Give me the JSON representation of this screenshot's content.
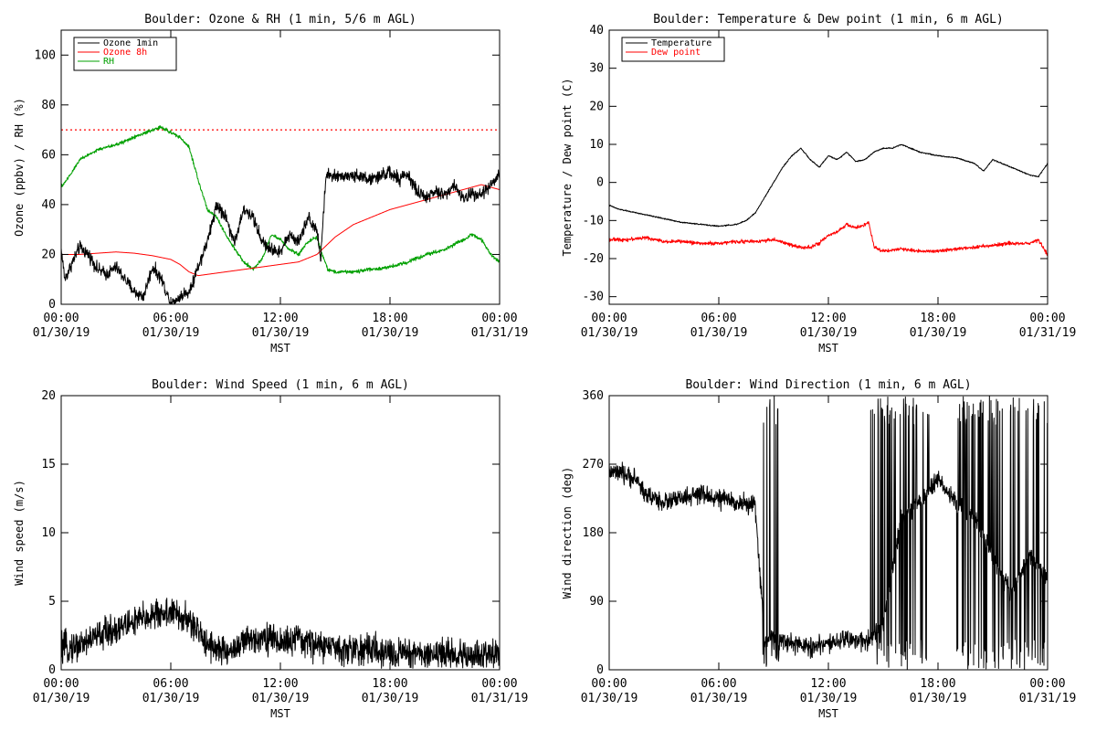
{
  "colors": {
    "black": "#000000",
    "red": "#ff0000",
    "green": "#00a000",
    "ref_line": "#ff0000"
  },
  "chart_data": [
    {
      "id": "ozone",
      "type": "line",
      "title": "Boulder: Ozone & RH (1 min, 5/6 m AGL)",
      "xlabel": "MST",
      "ylabel": "Ozone (ppbv) / RH (%)",
      "xlim": [
        0,
        24
      ],
      "ylim": [
        0,
        110
      ],
      "yticks": [
        "0",
        "20",
        "40",
        "60",
        "80",
        "100"
      ],
      "ytick_values": [
        0,
        20,
        40,
        60,
        80,
        100
      ],
      "xtick_values": [
        0,
        6,
        12,
        18,
        24
      ],
      "xtick_labels": [
        [
          "00:00",
          "01/30/19"
        ],
        [
          "06:00",
          "01/30/19"
        ],
        [
          "12:00",
          "01/30/19"
        ],
        [
          "18:00",
          "01/30/19"
        ],
        [
          "00:00",
          "01/31/19"
        ]
      ],
      "reference_line": {
        "y": 70,
        "style": "dotted",
        "color": "#ff0000"
      },
      "legend": {
        "placement": "top-left"
      },
      "series": [
        {
          "name": "Ozone 1min",
          "color": "#000000",
          "noise": 2.5,
          "x": [
            0,
            0.2,
            0.5,
            1,
            1.5,
            2,
            2.5,
            3,
            3.5,
            4,
            4.5,
            5,
            5.5,
            6,
            6.5,
            7,
            7.5,
            8,
            8.5,
            9,
            9.5,
            10,
            10.5,
            11,
            11.5,
            12,
            12.5,
            13,
            13.5,
            14,
            14.2,
            14.5,
            15,
            16,
            17,
            18,
            18.5,
            19,
            19.5,
            20,
            20.5,
            21,
            21.5,
            22,
            22.5,
            23,
            23.5,
            24
          ],
          "y": [
            22,
            10,
            15,
            23,
            20,
            14,
            12,
            15,
            10,
            5,
            3,
            15,
            10,
            0,
            3,
            5,
            15,
            25,
            40,
            35,
            25,
            38,
            35,
            25,
            22,
            21,
            28,
            25,
            35,
            30,
            18,
            52,
            51,
            52,
            50,
            53,
            50,
            52,
            45,
            43,
            45,
            44,
            48,
            42,
            45,
            44,
            48,
            52
          ]
        },
        {
          "name": "Ozone 8h",
          "color": "#ff0000",
          "noise": 0,
          "x": [
            0,
            1,
            2,
            3,
            4,
            5,
            6,
            6.5,
            7,
            7.5,
            8,
            9,
            10,
            11,
            12,
            13,
            14,
            15,
            16,
            17,
            18,
            19,
            20,
            21,
            22,
            23,
            24
          ],
          "y": [
            20,
            20,
            20.5,
            21,
            20.5,
            19.5,
            18,
            16,
            13,
            11.5,
            12,
            13,
            14,
            15,
            16,
            17,
            20,
            27,
            32,
            35,
            38,
            40,
            42,
            44,
            46,
            48,
            46
          ]
        },
        {
          "name": "RH",
          "color": "#00a000",
          "noise": 0.7,
          "x": [
            0,
            0.5,
            1,
            1.5,
            2,
            3,
            4,
            5,
            5.5,
            6,
            6.5,
            7,
            7.5,
            8,
            8.5,
            9,
            9.5,
            10,
            10.5,
            11,
            11.5,
            12,
            12.5,
            13,
            13.5,
            14,
            14.3,
            14.6,
            15,
            16,
            17,
            18,
            19,
            20,
            21,
            22,
            22.5,
            23,
            23.5,
            24
          ],
          "y": [
            47,
            52,
            58,
            60,
            62,
            64,
            67,
            70,
            71,
            69,
            67,
            63,
            50,
            38,
            35,
            28,
            22,
            17,
            14,
            18,
            28,
            26,
            22,
            20,
            25,
            27,
            20,
            14,
            13,
            13,
            14,
            15,
            17,
            20,
            22,
            26,
            28,
            26,
            20,
            17
          ]
        }
      ]
    },
    {
      "id": "temperature",
      "type": "line",
      "title": "Boulder: Temperature & Dew point (1 min, 6 m AGL)",
      "xlabel": "MST",
      "ylabel": "Temperature / Dew point (C)",
      "xlim": [
        0,
        24
      ],
      "ylim": [
        -32,
        40
      ],
      "yticks": [
        "-30",
        "-20",
        "-10",
        "0",
        "10",
        "20",
        "30",
        "40"
      ],
      "ytick_values": [
        -30,
        -20,
        -10,
        0,
        10,
        20,
        30,
        40
      ],
      "xtick_values": [
        0,
        6,
        12,
        18,
        24
      ],
      "xtick_labels": [
        [
          "00:00",
          "01/30/19"
        ],
        [
          "06:00",
          "01/30/19"
        ],
        [
          "12:00",
          "01/30/19"
        ],
        [
          "18:00",
          "01/30/19"
        ],
        [
          "00:00",
          "01/31/19"
        ]
      ],
      "legend": {
        "placement": "top-left"
      },
      "series": [
        {
          "name": "Temperature",
          "color": "#000000",
          "noise": 0.15,
          "x": [
            0,
            0.5,
            1,
            2,
            3,
            4,
            5,
            6,
            7,
            7.5,
            8,
            8.5,
            9,
            9.5,
            10,
            10.5,
            11,
            11.5,
            12,
            12.5,
            13,
            13.5,
            14,
            14.5,
            15,
            15.5,
            16,
            17,
            18,
            19,
            20,
            20.5,
            21,
            22,
            23,
            23.5,
            24
          ],
          "y": [
            -6,
            -7,
            -7.5,
            -8.5,
            -9.5,
            -10.5,
            -11,
            -11.5,
            -11,
            -10,
            -8,
            -4,
            0,
            4,
            7,
            9,
            6,
            4,
            7,
            6,
            8,
            5.5,
            6,
            8,
            9,
            9,
            10,
            8,
            7,
            6.5,
            5,
            3,
            6,
            4,
            2,
            1.5,
            5
          ]
        },
        {
          "name": "Dew point",
          "color": "#ff0000",
          "noise": 0.45,
          "x": [
            0,
            1,
            2,
            3,
            4,
            5,
            6,
            7,
            8,
            9,
            10,
            10.5,
            11,
            11.5,
            12,
            12.5,
            13,
            13.5,
            14,
            14.2,
            14.5,
            15,
            16,
            17,
            18,
            19,
            20,
            21,
            22,
            23,
            23.5,
            24
          ],
          "y": [
            -15,
            -15,
            -14.5,
            -15.5,
            -15.5,
            -16,
            -16,
            -15.5,
            -15.5,
            -15,
            -16.5,
            -17,
            -17,
            -16,
            -14,
            -13,
            -11,
            -12,
            -11,
            -10.5,
            -17,
            -18,
            -17.5,
            -18,
            -18,
            -17.5,
            -17,
            -16.5,
            -16,
            -16,
            -15,
            -19
          ]
        }
      ]
    },
    {
      "id": "wind-speed",
      "type": "line",
      "title": "Boulder: Wind Speed (1 min, 6 m AGL)",
      "xlabel": "MST",
      "ylabel": "Wind speed (m/s)",
      "xlim": [
        0,
        24
      ],
      "ylim": [
        0,
        20
      ],
      "yticks": [
        "0",
        "5",
        "10",
        "15",
        "20"
      ],
      "ytick_values": [
        0,
        5,
        10,
        15,
        20
      ],
      "xtick_values": [
        0,
        6,
        12,
        18,
        24
      ],
      "xtick_labels": [
        [
          "00:00",
          "01/30/19"
        ],
        [
          "06:00",
          "01/30/19"
        ],
        [
          "12:00",
          "01/30/19"
        ],
        [
          "18:00",
          "01/30/19"
        ],
        [
          "00:00",
          "01/31/19"
        ]
      ],
      "series": [
        {
          "name": "",
          "color": "#000000",
          "noise": 1.1,
          "x": [
            0,
            1,
            2,
            3,
            4,
            5,
            6,
            7,
            8,
            9,
            10,
            11,
            12,
            13,
            14,
            15,
            16,
            17,
            18,
            19,
            20,
            21,
            22,
            23,
            24
          ],
          "y": [
            1.5,
            1.8,
            2.5,
            3,
            3.5,
            4,
            4.2,
            3.5,
            2,
            1.2,
            2,
            2.5,
            2,
            2.2,
            1.8,
            1.6,
            1.5,
            1.4,
            1.2,
            1.3,
            1.1,
            1.2,
            1,
            1,
            1.5
          ]
        }
      ]
    },
    {
      "id": "wind-direction",
      "type": "line",
      "title": "Boulder: Wind Direction (1 min, 6 m AGL)",
      "xlabel": "MST",
      "ylabel": "Wind direction (deg)",
      "xlim": [
        0,
        24
      ],
      "ylim": [
        0,
        360
      ],
      "yticks": [
        "0",
        "90",
        "180",
        "270",
        "360"
      ],
      "ytick_values": [
        0,
        90,
        180,
        270,
        360
      ],
      "xtick_values": [
        0,
        6,
        12,
        18,
        24
      ],
      "xtick_labels": [
        [
          "00:00",
          "01/30/19"
        ],
        [
          "06:00",
          "01/30/19"
        ],
        [
          "12:00",
          "01/30/19"
        ],
        [
          "18:00",
          "01/30/19"
        ],
        [
          "00:00",
          "01/31/19"
        ]
      ],
      "series": [
        {
          "name": "",
          "color": "#000000",
          "noise": 12,
          "x": [
            0,
            1,
            1.5,
            2,
            3,
            4,
            5,
            6,
            7,
            8,
            8.5,
            9,
            10,
            11,
            12,
            13,
            14,
            15,
            16,
            17,
            18,
            19,
            20,
            21,
            22,
            23,
            24
          ],
          "y": [
            260,
            255,
            250,
            230,
            220,
            225,
            230,
            225,
            220,
            215,
            40,
            40,
            35,
            30,
            35,
            40,
            35,
            60,
            200,
            220,
            250,
            220,
            200,
            150,
            100,
            150,
            120
          ],
          "jumps": [
            [
              8.4,
              8.9
            ],
            [
              8.9,
              9.3
            ],
            [
              14.3,
              17.5
            ],
            [
              19.0,
              24.0
            ]
          ]
        }
      ]
    }
  ]
}
